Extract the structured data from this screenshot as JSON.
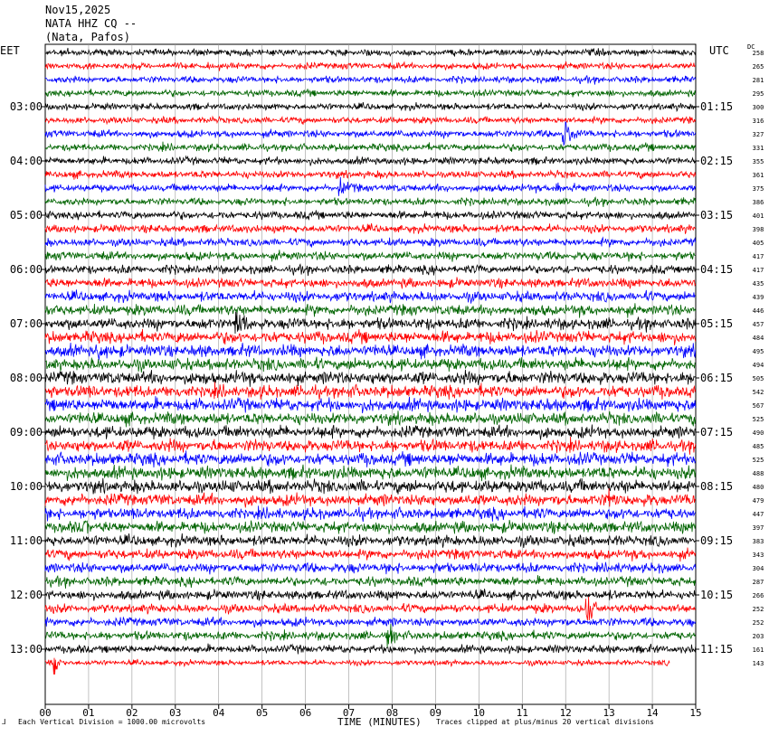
{
  "header": {
    "date": "Nov15,2025",
    "station": "NATA HHZ CQ --",
    "location": "(Nata, Pafos)"
  },
  "left_timezone": "EET",
  "right_timezone": "UTC",
  "dc_label": "DC",
  "footer": {
    "scale_note": "Each Vertical Division = 1000.00 microvolts",
    "clip_note": "Traces clipped at plus/minus 20 vertical divisions",
    "xaxis_title": "TIME (MINUTES)"
  },
  "colors": {
    "black": "#000000",
    "red": "#ff0000",
    "blue": "#0000ff",
    "green": "#006400",
    "grid": "#999999"
  },
  "chart_data": {
    "type": "line",
    "title": "NATA HHZ CQ --",
    "xlabel": "TIME (MINUTES)",
    "xlim": [
      0,
      15
    ],
    "x_ticks": [
      "00",
      "01",
      "02",
      "03",
      "04",
      "05",
      "06",
      "07",
      "08",
      "09",
      "10",
      "11",
      "12",
      "13",
      "14",
      "15"
    ],
    "left_hour_labels": [
      "03:00",
      "04:00",
      "05:00",
      "06:00",
      "07:00",
      "08:00",
      "09:00",
      "10:00",
      "11:00",
      "12:00",
      "13:00"
    ],
    "right_hour_labels": [
      "01:15",
      "02:15",
      "03:15",
      "04:15",
      "05:15",
      "06:15",
      "07:15",
      "08:15",
      "09:15",
      "10:15",
      "11:15"
    ],
    "trace_color_cycle": [
      "black",
      "red",
      "blue",
      "green"
    ],
    "dc_offsets": [
      258,
      265,
      281,
      295,
      300,
      316,
      327,
      331,
      355,
      361,
      375,
      386,
      401,
      398,
      405,
      417,
      417,
      435,
      439,
      446,
      457,
      484,
      495,
      494,
      505,
      542,
      567,
      525,
      490,
      485,
      525,
      488,
      480,
      479,
      447,
      397,
      383,
      343,
      304,
      287,
      266,
      252,
      252,
      203,
      161,
      143
    ],
    "trace_activity": [
      1,
      1,
      1,
      1,
      1,
      1,
      1.1,
      1.1,
      1.1,
      1.1,
      1.1,
      1.1,
      1.2,
      1.2,
      1.2,
      1.3,
      1.3,
      1.4,
      1.5,
      1.6,
      1.7,
      1.8,
      1.8,
      1.8,
      1.9,
      1.9,
      1.9,
      1.8,
      1.8,
      1.8,
      1.9,
      1.9,
      1.9,
      1.8,
      1.7,
      1.7,
      1.6,
      1.5,
      1.5,
      1.4,
      1.4,
      1.3,
      1.3,
      1.3,
      1.2,
      0.8
    ],
    "events": [
      {
        "trace": 6,
        "minute": 11.95,
        "amp": 2.5
      },
      {
        "trace": 10,
        "minute": 6.8,
        "amp": 1.5
      },
      {
        "trace": 10,
        "minute": 11.8,
        "amp": 1.2
      },
      {
        "trace": 20,
        "minute": 4.4,
        "amp": 2.0
      },
      {
        "trace": 22,
        "minute": 1.2,
        "amp": 1.2
      },
      {
        "trace": 35,
        "minute": 0.9,
        "amp": 1.0
      },
      {
        "trace": 33,
        "minute": 13.0,
        "amp": 1.4
      },
      {
        "trace": 41,
        "minute": 12.5,
        "amp": 2.2
      },
      {
        "trace": 43,
        "minute": 7.9,
        "amp": 1.4
      },
      {
        "trace": 45,
        "minute": 0.2,
        "amp": 1.6
      }
    ],
    "trace_count": 46,
    "last_trace_fraction": 0.96
  }
}
